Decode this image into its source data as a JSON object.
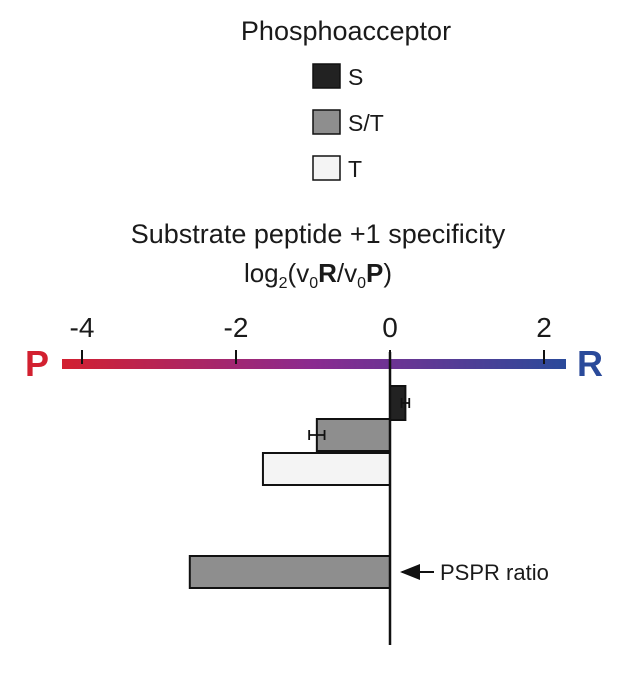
{
  "legend": {
    "title": "Phosphoacceptor",
    "entries": [
      {
        "label": "S",
        "color": "#222222"
      },
      {
        "label": "S/T",
        "color": "#8e8e8e"
      },
      {
        "label": "T",
        "color": "#f4f4f4"
      }
    ]
  },
  "chart_data": {
    "type": "bar",
    "orientation": "horizontal",
    "title": "Substrate peptide +1 specificity",
    "subtitle": {
      "pre": "log",
      "sub1": "2",
      "mid1": "(v",
      "sub2": "0",
      "bold1": "R",
      "mid2": "/v",
      "sub3": "0",
      "bold2": "P",
      "post": ")"
    },
    "x_ticks": [
      -4,
      -2,
      0,
      2
    ],
    "x_tick_labels": [
      "-4",
      "-2",
      "0",
      "2"
    ],
    "xlim": [
      -4.3,
      2.3
    ],
    "axis_end_labels": {
      "left": "P",
      "right": "R"
    },
    "gradient": {
      "left": "#d22030",
      "middle": "#8a2a90",
      "right": "#2a4a9a"
    },
    "grid": false,
    "series": [
      {
        "phosphoacceptor": "S",
        "value": 0.2,
        "error": 0.05,
        "color": "#222222"
      },
      {
        "phosphoacceptor": "S/T",
        "value": -0.95,
        "error": 0.1,
        "color": "#8e8e8e"
      },
      {
        "phosphoacceptor": "T",
        "value": -1.65,
        "error": 0.0,
        "color": "#f4f4f4"
      },
      {
        "phosphoacceptor": "S/T",
        "value": -2.6,
        "error": 0.0,
        "color": "#8e8e8e"
      }
    ],
    "annotation": {
      "text": "PSPR ratio",
      "target_index": 3
    }
  }
}
